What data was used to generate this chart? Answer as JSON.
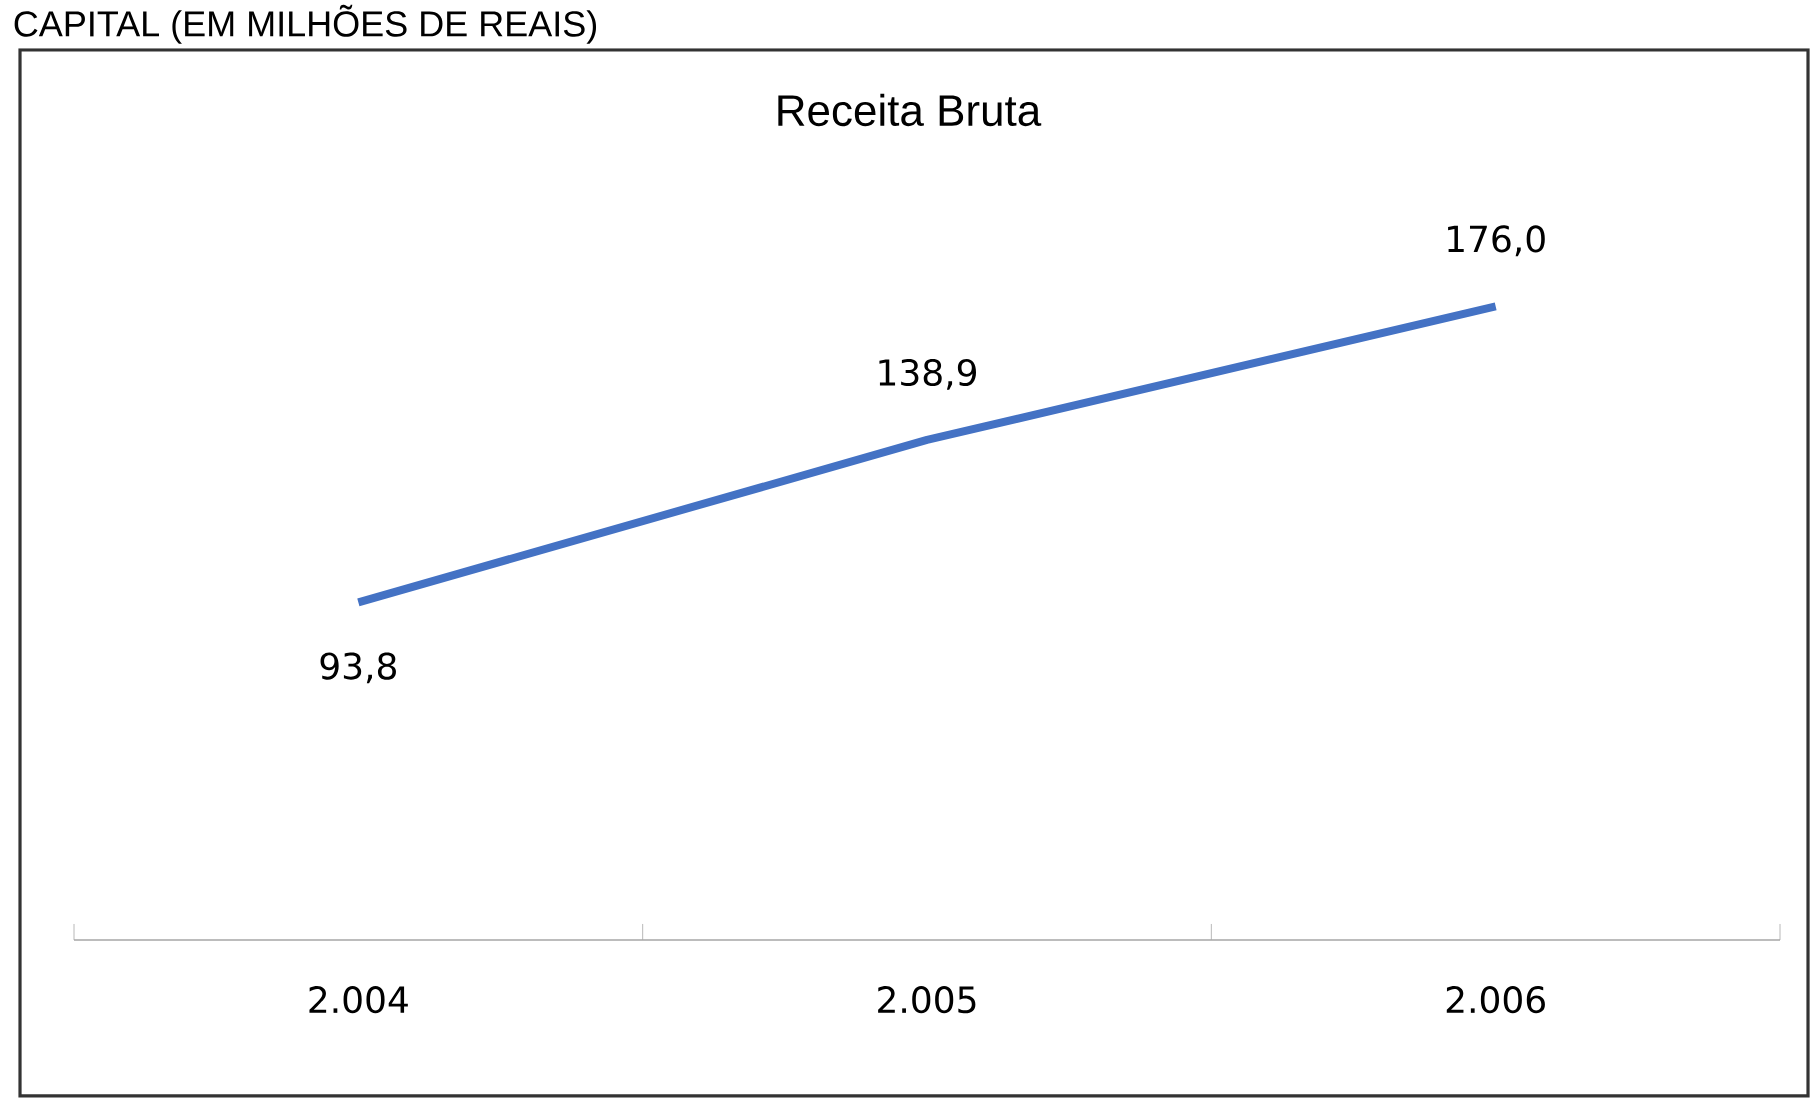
{
  "chart_data": {
    "type": "line",
    "title": "Receita Bruta",
    "categories": [
      "2.004",
      "2.005",
      "2.006"
    ],
    "series": [
      {
        "color": "#4472c4",
        "values": [
          93.8,
          138.9,
          176.0
        ],
        "value_labels": [
          "93,8",
          "138,9",
          "176,0"
        ]
      }
    ],
    "annotations": [
      "CAPITAL (EM MILHÕES DE REAIS)"
    ],
    "grid": false,
    "marker": "none",
    "line_style": "solid"
  }
}
